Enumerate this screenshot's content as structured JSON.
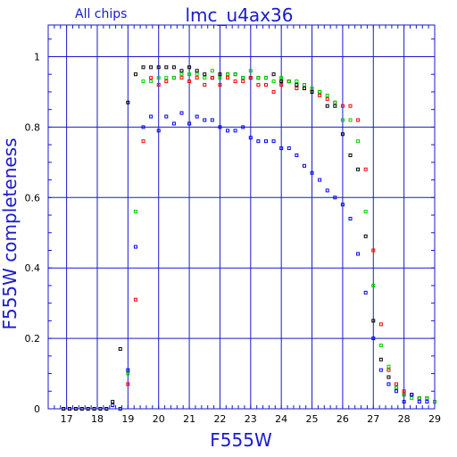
{
  "chart_data": {
    "type": "scatter",
    "title": "lmc_u4ax36",
    "subtitle": "All chips",
    "xlabel": "F555W",
    "ylabel": "F555W completeness",
    "xlim": [
      16.4,
      29
    ],
    "ylim": [
      0,
      1.09
    ],
    "xticks": [
      17,
      18,
      19,
      20,
      21,
      22,
      23,
      24,
      25,
      26,
      27,
      28,
      29
    ],
    "yticks": [
      0,
      0.2,
      0.4,
      0.6,
      0.8,
      1
    ],
    "ytick_labels": [
      "0",
      "0.2",
      "0.4",
      "0.6",
      "0.8",
      "1"
    ],
    "grid": true,
    "colors": {
      "axis": "#1a1acc",
      "grid": "#1a1acc",
      "black": "#000000",
      "red": "#ff0000",
      "green": "#00cc00",
      "blue": "#0000ff"
    },
    "series": [
      {
        "color": "black",
        "points": [
          [
            16.9,
            0.0
          ],
          [
            17.1,
            0.0
          ],
          [
            17.3,
            0.0
          ],
          [
            17.5,
            0.0
          ],
          [
            17.7,
            0.0
          ],
          [
            17.9,
            0.0
          ],
          [
            18.1,
            0.0
          ],
          [
            18.3,
            0.0
          ],
          [
            18.5,
            0.02
          ],
          [
            18.75,
            0.17
          ],
          [
            19.0,
            0.87
          ],
          [
            19.25,
            0.95
          ],
          [
            19.5,
            0.97
          ],
          [
            19.75,
            0.97
          ],
          [
            20.0,
            0.97
          ],
          [
            20.25,
            0.97
          ],
          [
            20.5,
            0.97
          ],
          [
            20.75,
            0.96
          ],
          [
            21.0,
            0.97
          ],
          [
            21.25,
            0.96
          ],
          [
            21.5,
            0.95
          ],
          [
            21.75,
            0.94
          ],
          [
            22.0,
            0.95
          ],
          [
            22.25,
            0.95
          ],
          [
            22.5,
            0.95
          ],
          [
            22.75,
            0.94
          ],
          [
            23.0,
            0.94
          ],
          [
            23.25,
            0.94
          ],
          [
            23.5,
            0.94
          ],
          [
            23.75,
            0.95
          ],
          [
            24.0,
            0.93
          ],
          [
            24.25,
            0.93
          ],
          [
            24.5,
            0.92
          ],
          [
            24.75,
            0.91
          ],
          [
            25.0,
            0.9
          ],
          [
            25.25,
            0.9
          ],
          [
            25.5,
            0.86
          ],
          [
            25.75,
            0.86
          ],
          [
            26.0,
            0.78
          ],
          [
            26.25,
            0.72
          ],
          [
            26.5,
            0.68
          ],
          [
            26.75,
            0.49
          ],
          [
            27.0,
            0.25
          ],
          [
            27.25,
            0.14
          ],
          [
            27.5,
            0.09
          ],
          [
            27.75,
            0.06
          ],
          [
            28.0,
            0.04
          ],
          [
            28.25,
            0.04
          ],
          [
            28.5,
            0.03
          ],
          [
            28.75,
            0.03
          ]
        ]
      },
      {
        "color": "red",
        "points": [
          [
            19.0,
            0.07
          ],
          [
            19.25,
            0.31
          ],
          [
            19.5,
            0.76
          ],
          [
            19.75,
            0.94
          ],
          [
            20.0,
            0.92
          ],
          [
            20.25,
            0.93
          ],
          [
            20.5,
            0.94
          ],
          [
            20.75,
            0.94
          ],
          [
            21.0,
            0.93
          ],
          [
            21.25,
            0.94
          ],
          [
            21.5,
            0.92
          ],
          [
            21.75,
            0.94
          ],
          [
            22.0,
            0.92
          ],
          [
            22.25,
            0.94
          ],
          [
            22.5,
            0.93
          ],
          [
            22.75,
            0.93
          ],
          [
            23.0,
            0.94
          ],
          [
            23.25,
            0.92
          ],
          [
            23.5,
            0.92
          ],
          [
            23.75,
            0.9
          ],
          [
            24.0,
            0.92
          ],
          [
            24.25,
            0.93
          ],
          [
            24.5,
            0.91
          ],
          [
            24.75,
            0.92
          ],
          [
            25.0,
            0.91
          ],
          [
            25.25,
            0.89
          ],
          [
            25.5,
            0.88
          ],
          [
            25.75,
            0.87
          ],
          [
            26.0,
            0.86
          ],
          [
            26.25,
            0.86
          ],
          [
            26.5,
            0.82
          ],
          [
            26.75,
            0.68
          ],
          [
            27.0,
            0.45
          ],
          [
            27.25,
            0.24
          ],
          [
            27.5,
            0.11
          ],
          [
            27.75,
            0.07
          ],
          [
            28.0,
            0.05
          ],
          [
            28.25,
            0.04
          ],
          [
            28.5,
            0.03
          ],
          [
            28.75,
            0.03
          ],
          [
            29.0,
            0.02
          ]
        ]
      },
      {
        "color": "green",
        "points": [
          [
            18.75,
            0.0
          ],
          [
            19.0,
            0.1
          ],
          [
            19.25,
            0.56
          ],
          [
            19.5,
            0.93
          ],
          [
            19.75,
            0.93
          ],
          [
            20.0,
            0.94
          ],
          [
            20.25,
            0.94
          ],
          [
            20.5,
            0.94
          ],
          [
            20.75,
            0.95
          ],
          [
            21.0,
            0.95
          ],
          [
            21.25,
            0.95
          ],
          [
            21.5,
            0.94
          ],
          [
            21.75,
            0.96
          ],
          [
            22.0,
            0.94
          ],
          [
            22.25,
            0.95
          ],
          [
            22.5,
            0.95
          ],
          [
            22.75,
            0.94
          ],
          [
            23.0,
            0.96
          ],
          [
            23.25,
            0.94
          ],
          [
            23.5,
            0.94
          ],
          [
            23.75,
            0.93
          ],
          [
            24.0,
            0.94
          ],
          [
            24.25,
            0.93
          ],
          [
            24.5,
            0.93
          ],
          [
            24.75,
            0.92
          ],
          [
            25.0,
            0.91
          ],
          [
            25.25,
            0.9
          ],
          [
            25.5,
            0.89
          ],
          [
            25.75,
            0.87
          ],
          [
            26.0,
            0.82
          ],
          [
            26.25,
            0.82
          ],
          [
            26.5,
            0.76
          ],
          [
            26.75,
            0.56
          ],
          [
            27.0,
            0.35
          ],
          [
            27.25,
            0.18
          ],
          [
            27.5,
            0.12
          ],
          [
            27.75,
            0.06
          ],
          [
            28.0,
            0.04
          ],
          [
            28.25,
            0.03
          ],
          [
            28.5,
            0.03
          ],
          [
            28.75,
            0.03
          ],
          [
            29.0,
            0.02
          ]
        ]
      },
      {
        "color": "blue",
        "points": [
          [
            18.5,
            0.01
          ],
          [
            18.75,
            0.0
          ],
          [
            19.0,
            0.11
          ],
          [
            19.25,
            0.46
          ],
          [
            19.5,
            0.8
          ],
          [
            19.75,
            0.83
          ],
          [
            20.0,
            0.79
          ],
          [
            20.25,
            0.83
          ],
          [
            20.5,
            0.81
          ],
          [
            20.75,
            0.84
          ],
          [
            21.0,
            0.81
          ],
          [
            21.25,
            0.83
          ],
          [
            21.5,
            0.82
          ],
          [
            21.75,
            0.82
          ],
          [
            22.0,
            0.8
          ],
          [
            22.25,
            0.79
          ],
          [
            22.5,
            0.79
          ],
          [
            22.75,
            0.8
          ],
          [
            23.0,
            0.77
          ],
          [
            23.25,
            0.76
          ],
          [
            23.5,
            0.76
          ],
          [
            23.75,
            0.76
          ],
          [
            24.0,
            0.74
          ],
          [
            24.25,
            0.74
          ],
          [
            24.5,
            0.72
          ],
          [
            24.75,
            0.69
          ],
          [
            25.0,
            0.67
          ],
          [
            25.25,
            0.65
          ],
          [
            25.5,
            0.62
          ],
          [
            25.75,
            0.6
          ],
          [
            26.0,
            0.58
          ],
          [
            26.25,
            0.54
          ],
          [
            26.5,
            0.44
          ],
          [
            26.75,
            0.33
          ],
          [
            27.0,
            0.2
          ],
          [
            27.25,
            0.11
          ],
          [
            27.5,
            0.07
          ],
          [
            27.75,
            0.05
          ],
          [
            28.0,
            0.02
          ],
          [
            28.25,
            0.04
          ],
          [
            28.5,
            0.02
          ],
          [
            28.75,
            0.02
          ]
        ]
      }
    ]
  }
}
